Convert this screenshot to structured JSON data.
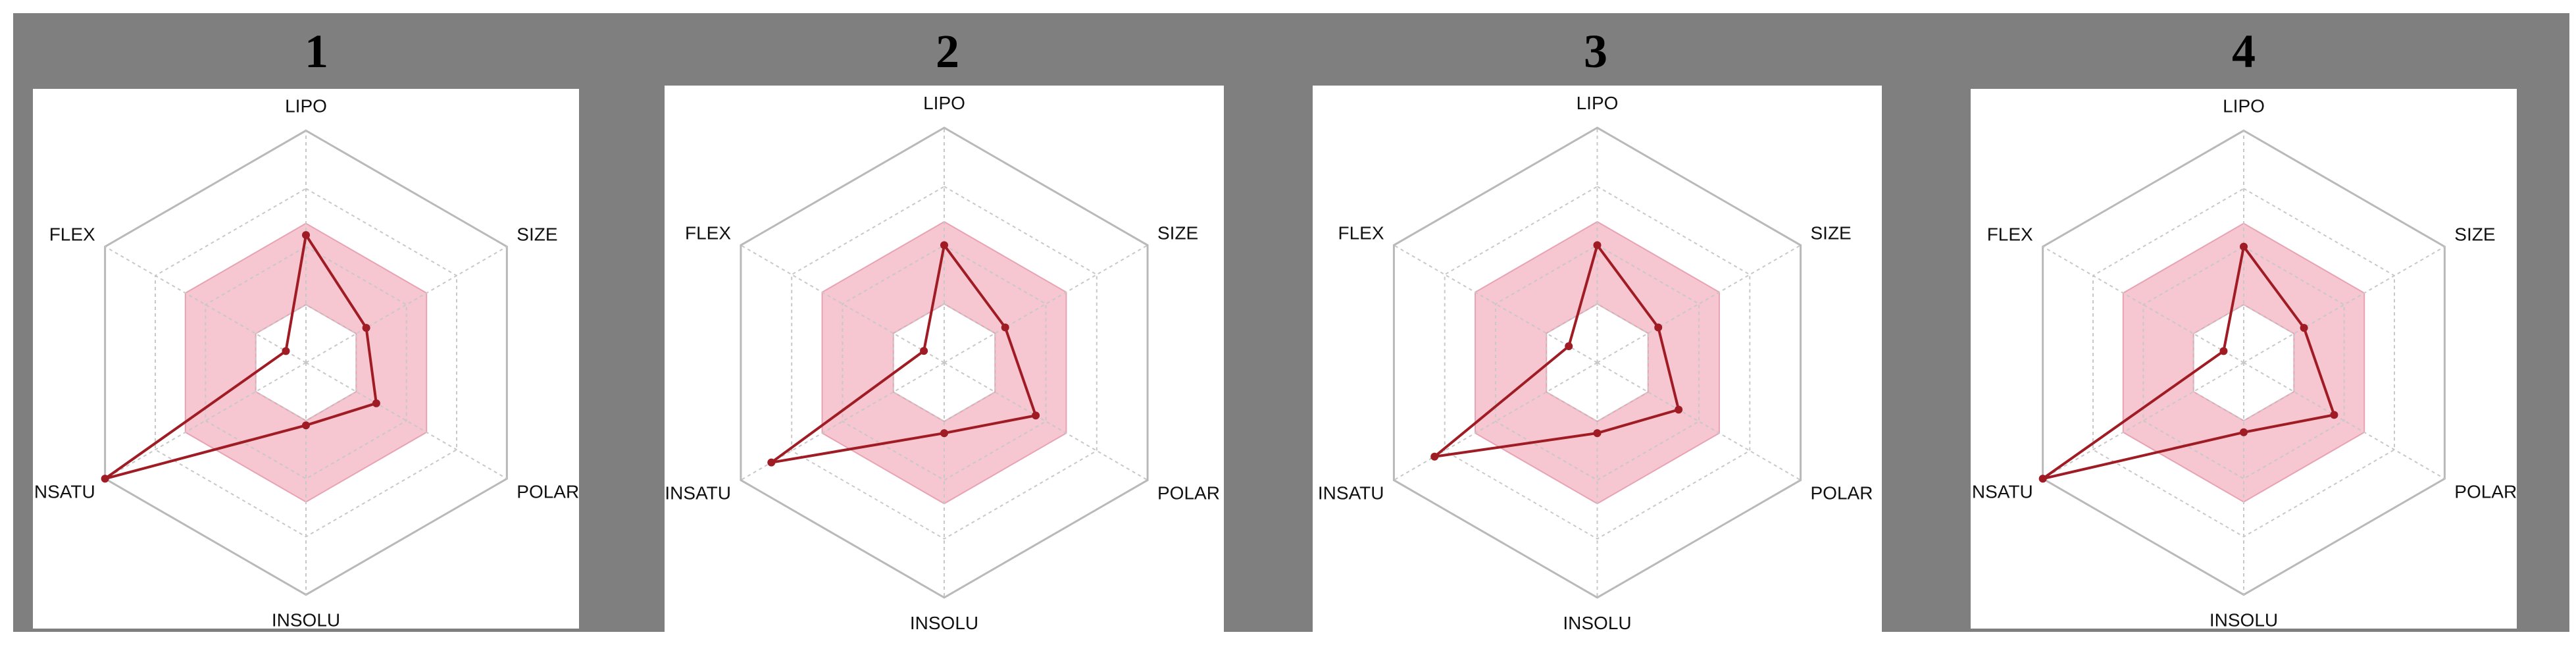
{
  "colors": {
    "background": "#7f7f7f",
    "plot_background": "#ffffff",
    "optimal_zone": "#f6c6d1",
    "optimal_zone_edge": "#e7a3b4",
    "series_line": "#a01c24",
    "grid_line": "#b9b9b9",
    "grid_dotted": "#c8c8c8"
  },
  "chart_data": [
    {
      "type": "radar",
      "title": "1",
      "axes": [
        "LIPO",
        "SIZE",
        "POLAR",
        "INSOLU",
        "INSATU",
        "FLEX"
      ],
      "grid_levels": 4,
      "range": [
        0,
        1
      ],
      "optimal_zone": {
        "inner": 0.25,
        "outer": 0.6
      },
      "series": [
        {
          "values": [
            0.55,
            0.3,
            0.35,
            0.27,
            1.0,
            0.1
          ]
        }
      ]
    },
    {
      "type": "radar",
      "title": "2",
      "axes": [
        "LIPO",
        "SIZE",
        "POLAR",
        "INSOLU",
        "INSATU",
        "FLEX"
      ],
      "grid_levels": 4,
      "range": [
        0,
        1
      ],
      "optimal_zone": {
        "inner": 0.25,
        "outer": 0.6
      },
      "series": [
        {
          "values": [
            0.5,
            0.3,
            0.45,
            0.3,
            0.85,
            0.1
          ]
        }
      ]
    },
    {
      "type": "radar",
      "title": "3",
      "axes": [
        "LIPO",
        "SIZE",
        "POLAR",
        "INSOLU",
        "INSATU",
        "FLEX"
      ],
      "grid_levels": 4,
      "range": [
        0,
        1
      ],
      "optimal_zone": {
        "inner": 0.25,
        "outer": 0.6
      },
      "series": [
        {
          "values": [
            0.5,
            0.3,
            0.4,
            0.3,
            0.8,
            0.14
          ]
        }
      ]
    },
    {
      "type": "radar",
      "title": "4",
      "axes": [
        "LIPO",
        "SIZE",
        "POLAR",
        "INSOLU",
        "INSATU",
        "FLEX"
      ],
      "grid_levels": 4,
      "range": [
        0,
        1
      ],
      "optimal_zone": {
        "inner": 0.25,
        "outer": 0.6
      },
      "series": [
        {
          "values": [
            0.5,
            0.3,
            0.45,
            0.3,
            1.0,
            0.1
          ]
        }
      ]
    }
  ]
}
